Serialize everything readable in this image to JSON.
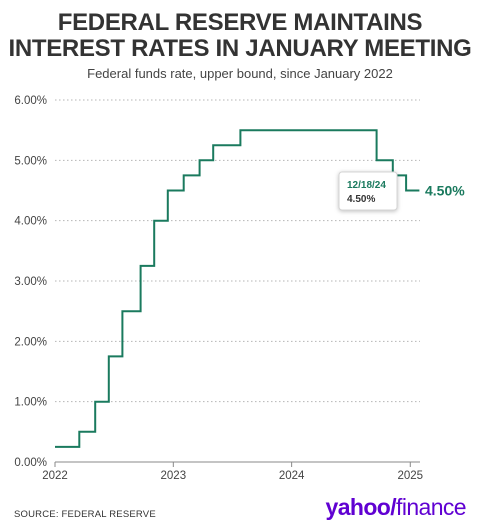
{
  "header": {
    "title_line1": "FEDERAL RESERVE MAINTAINS",
    "title_line2": "INTEREST RATES IN JANUARY MEETING",
    "subtitle": "Federal funds rate, upper bound, since January 2022"
  },
  "footer": {
    "source": "SOURCE: FEDERAL RESERVE",
    "logo_yahoo": "yahoo/",
    "logo_finance": "finance"
  },
  "chart_data": {
    "type": "line",
    "step": true,
    "series": [
      {
        "color": "#1a7a5e",
        "points": [
          [
            "2022-01-01",
            0.25
          ],
          [
            "2022-03-17",
            0.5
          ],
          [
            "2022-05-05",
            1.0
          ],
          [
            "2022-06-16",
            1.75
          ],
          [
            "2022-07-28",
            2.5
          ],
          [
            "2022-09-22",
            3.25
          ],
          [
            "2022-11-03",
            4.0
          ],
          [
            "2022-12-15",
            4.5
          ],
          [
            "2023-02-02",
            4.75
          ],
          [
            "2023-03-23",
            5.0
          ],
          [
            "2023-05-04",
            5.25
          ],
          [
            "2023-07-27",
            5.5
          ],
          [
            "2024-09-19",
            5.0
          ],
          [
            "2024-11-08",
            4.75
          ],
          [
            "2024-12-19",
            4.5
          ],
          [
            "2025-01-29",
            4.5
          ]
        ]
      }
    ],
    "x_ticks": [
      "2022",
      "2023",
      "2024",
      "2025"
    ],
    "y_ticks": [
      "0.00%",
      "1.00%",
      "2.00%",
      "3.00%",
      "4.00%",
      "5.00%",
      "6.00%"
    ],
    "ylim": [
      0,
      6
    ],
    "xlim": [
      "2022-01-01",
      "2025-01-31"
    ],
    "grid": "horizontal-dotted",
    "end_label": "4.50%",
    "tooltip": {
      "date": "12/18/24",
      "value": "4.50%"
    }
  }
}
